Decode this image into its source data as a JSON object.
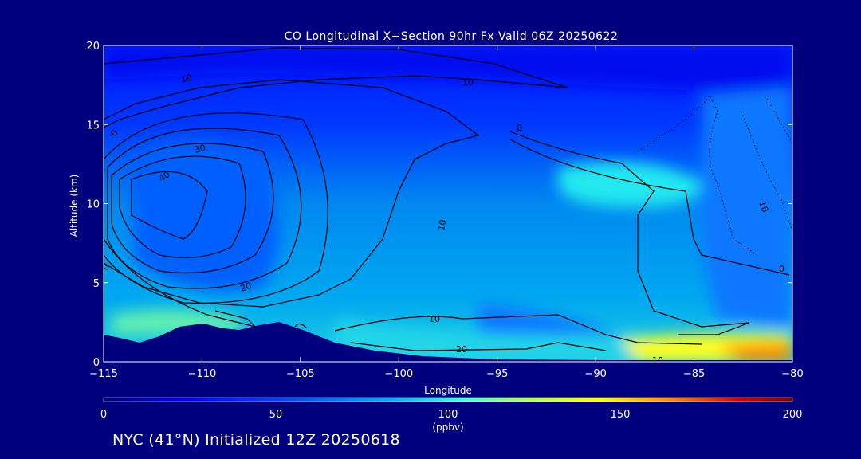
{
  "chart_data": {
    "type": "heatmap",
    "title": "CO Longitudinal X−Section 90hr  Fx Valid 06Z 20250622",
    "xlabel": "Longitude",
    "ylabel": "Altitude (km)",
    "xlim": [
      -115,
      -80
    ],
    "ylim": [
      0,
      20
    ],
    "x_ticks": [
      -115,
      -110,
      -105,
      -100,
      -95,
      -90,
      -85,
      -80
    ],
    "x_tick_labels": [
      "−115",
      "−110",
      "−105",
      "−100",
      "−95",
      "−90",
      "−85",
      "−80"
    ],
    "y_ticks": [
      0,
      5,
      10,
      15,
      20
    ],
    "y_tick_labels": [
      "0",
      "5",
      "10",
      "15",
      "20"
    ],
    "colorbar": {
      "min": 0,
      "max": 200,
      "ticks": [
        "0",
        "50",
        "100",
        "150",
        "200"
      ],
      "units": "(ppbv)",
      "colors": [
        "#000090",
        "#0000ff",
        "#0060ff",
        "#00c8ff",
        "#40ffc0",
        "#ffff00",
        "#ff8000",
        "#d00000",
        "#800000"
      ]
    },
    "contour_labels": [
      "10",
      "10",
      "0",
      "30",
      "40",
      "20",
      "10",
      "10",
      "20",
      "10",
      "0",
      "0",
      "0",
      "10"
    ],
    "footer": "NYC (41°N) Initialized 12Z 20250618"
  }
}
